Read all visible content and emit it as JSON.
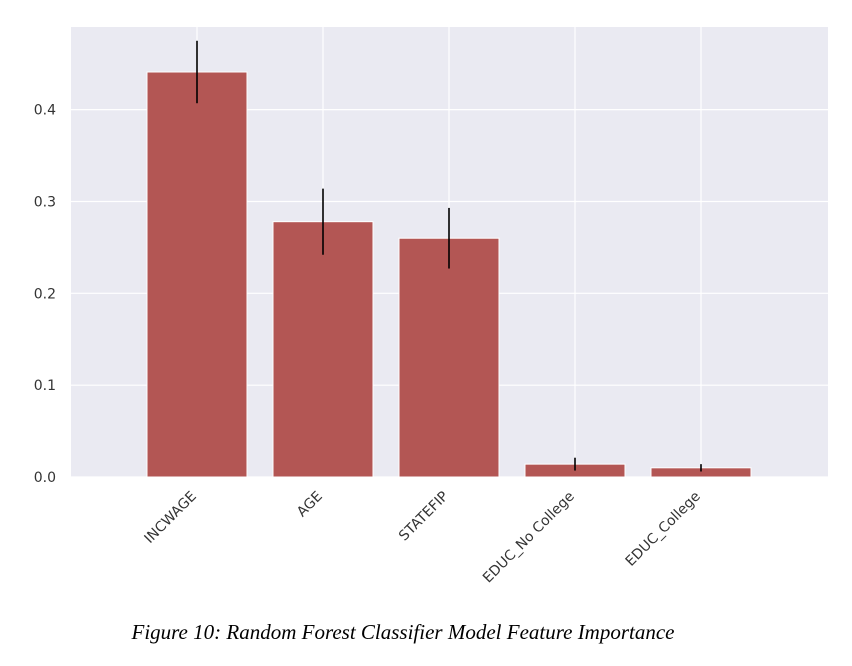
{
  "chart_data": {
    "type": "bar",
    "categories": [
      "INCWAGE",
      "AGE",
      "STATEFIP",
      "EDUC_No College",
      "EDUC_College"
    ],
    "values": [
      0.441,
      0.278,
      0.26,
      0.014,
      0.01
    ],
    "errors": [
      0.034,
      0.036,
      0.033,
      0.007,
      0.004
    ],
    "ylim": [
      0.0,
      0.49
    ],
    "yticks": [
      0.0,
      0.1,
      0.2,
      0.3,
      0.4
    ],
    "ytick_labels": [
      "0.0",
      "0.1",
      "0.2",
      "0.3",
      "0.4"
    ],
    "grid": true,
    "bar_color": "#b35654",
    "plot_background": "#eaeaf2",
    "grid_color": "#ffffff",
    "errorbar_color": "#000000"
  },
  "caption": "Figure 10: Random Forest Classifier Model Feature Importance"
}
